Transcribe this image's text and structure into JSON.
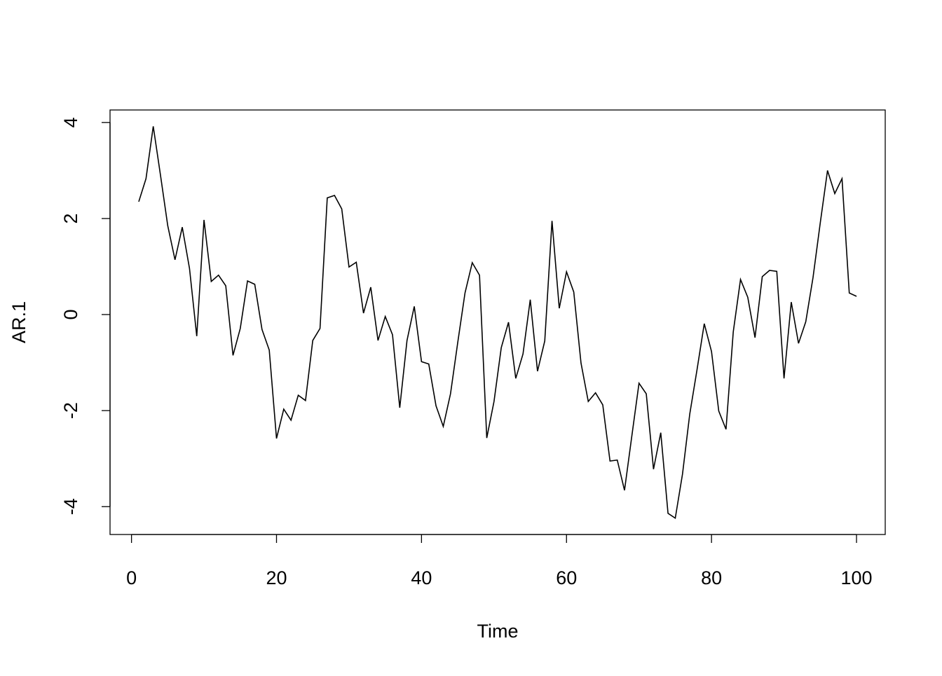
{
  "chart_data": {
    "type": "line",
    "xlabel": "Time",
    "ylabel": "AR.1",
    "x": [
      1,
      2,
      3,
      4,
      5,
      6,
      7,
      8,
      9,
      10,
      11,
      12,
      13,
      14,
      15,
      16,
      17,
      18,
      19,
      20,
      21,
      22,
      23,
      24,
      25,
      26,
      27,
      28,
      29,
      30,
      31,
      32,
      33,
      34,
      35,
      36,
      37,
      38,
      39,
      40,
      41,
      42,
      43,
      44,
      45,
      46,
      47,
      48,
      49,
      50,
      51,
      52,
      53,
      54,
      55,
      56,
      57,
      58,
      59,
      60,
      61,
      62,
      63,
      64,
      65,
      66,
      67,
      68,
      69,
      70,
      71,
      72,
      73,
      74,
      75,
      76,
      77,
      78,
      79,
      80,
      81,
      82,
      83,
      84,
      85,
      86,
      87,
      88,
      89,
      90,
      91,
      92,
      93,
      94,
      95,
      96,
      97,
      98,
      99,
      100
    ],
    "values": [
      2.35,
      2.83,
      3.92,
      2.9,
      1.85,
      1.14,
      1.82,
      0.96,
      -0.45,
      1.97,
      0.69,
      0.82,
      0.6,
      -0.85,
      -0.29,
      0.7,
      0.63,
      -0.31,
      -0.74,
      -2.58,
      -1.97,
      -2.2,
      -1.68,
      -1.79,
      -0.54,
      -0.29,
      2.43,
      2.48,
      2.2,
      0.99,
      1.09,
      0.03,
      0.57,
      -0.54,
      -0.04,
      -0.42,
      -1.94,
      -0.54,
      0.17,
      -0.98,
      -1.03,
      -1.9,
      -2.33,
      -1.65,
      -0.58,
      0.45,
      1.08,
      0.82,
      -2.57,
      -1.81,
      -0.69,
      -0.16,
      -1.33,
      -0.82,
      0.31,
      -1.18,
      -0.55,
      1.95,
      0.13,
      0.89,
      0.47,
      -1.01,
      -1.81,
      -1.63,
      -1.88,
      -3.05,
      -3.03,
      -3.66,
      -2.54,
      -1.43,
      -1.65,
      -3.22,
      -2.46,
      -4.14,
      -4.24,
      -3.32,
      -2.07,
      -1.15,
      -0.19,
      -0.77,
      -2.01,
      -2.39,
      -0.36,
      0.73,
      0.36,
      -0.48,
      0.79,
      0.92,
      0.9,
      -1.33,
      0.26,
      -0.6,
      -0.15,
      0.77,
      1.91,
      3.0,
      2.52,
      2.83,
      0.45,
      0.38
    ],
    "color": "#000000",
    "xlim": [
      -2.96,
      103.96
    ],
    "ylim": [
      -4.58,
      4.26
    ],
    "xticks": [
      0,
      20,
      40,
      60,
      80,
      100
    ],
    "yticks": [
      -4,
      -2,
      0,
      2,
      4
    ]
  }
}
